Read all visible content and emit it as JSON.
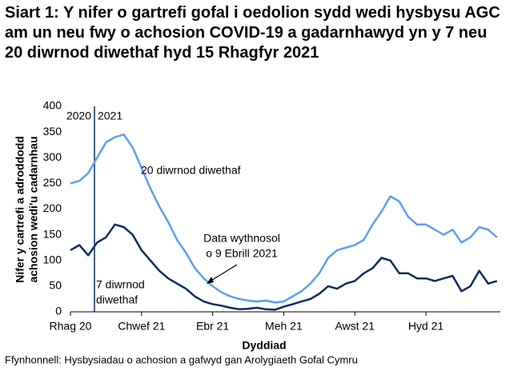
{
  "chart_data": {
    "type": "line",
    "title": "Siart 1: Y nifer o gartrefi gofal i oedolion sydd wedi hysbysu AGC am un neu fwy o achosion COVID-19 a gadarnhawyd yn y 7 neu 20 diwrnod diwethaf hyd 15 Rhagfyr 2021",
    "y_label": [
      "Nifer y cartrefi a adroddodd",
      "achosion wedi'u cadarnhau"
    ],
    "x_label": "Dyddiad",
    "source": "Ffynhonnell: Hysbysiadau o achosion a gafwyd gan Arolygiaeth Gofal Cymru",
    "year_labels": [
      "2020",
      "2021"
    ],
    "annotations": [
      [
        "20 diwrnod diwethaf"
      ],
      [
        "7 diwrnod",
        "diwethaf"
      ],
      [
        "Data wythnosol",
        "o 9 Ebrill 2021"
      ]
    ],
    "categories": [
      "Rhag 20",
      null,
      null,
      null,
      null,
      null,
      null,
      null,
      "Chwef 21",
      null,
      null,
      null,
      null,
      null,
      null,
      null,
      "Ebr 21",
      null,
      null,
      null,
      null,
      null,
      null,
      null,
      "Meh 21",
      null,
      null,
      null,
      null,
      null,
      null,
      null,
      "Awst 21",
      null,
      null,
      null,
      null,
      null,
      null,
      null,
      "Hyd 21",
      null,
      null,
      null,
      null,
      null,
      null,
      null,
      null
    ],
    "series": [
      {
        "name": "20 diwrnod diwethaf",
        "color": "#5aa0ee",
        "values": [
          250,
          255,
          270,
          300,
          330,
          340,
          345,
          320,
          280,
          240,
          205,
          175,
          140,
          115,
          85,
          65,
          50,
          38,
          30,
          25,
          22,
          20,
          22,
          18,
          20,
          30,
          40,
          55,
          75,
          105,
          120,
          125,
          130,
          140,
          170,
          195,
          225,
          215,
          185,
          170,
          170,
          160,
          150,
          160,
          135,
          145,
          165,
          160,
          145
        ]
      },
      {
        "name": "7 diwrnod diwethaf",
        "color": "#0c2c5e",
        "values": [
          120,
          130,
          110,
          135,
          145,
          170,
          165,
          150,
          120,
          100,
          80,
          65,
          55,
          45,
          30,
          20,
          15,
          12,
          8,
          5,
          6,
          8,
          5,
          4,
          10,
          15,
          20,
          25,
          35,
          50,
          45,
          55,
          60,
          75,
          85,
          105,
          100,
          75,
          75,
          65,
          65,
          60,
          65,
          70,
          40,
          50,
          80,
          55,
          60
        ]
      }
    ],
    "ylim": [
      0,
      400
    ],
    "yticks": [
      0,
      50,
      100,
      150,
      200,
      250,
      300,
      350,
      400
    ],
    "grid": false
  }
}
